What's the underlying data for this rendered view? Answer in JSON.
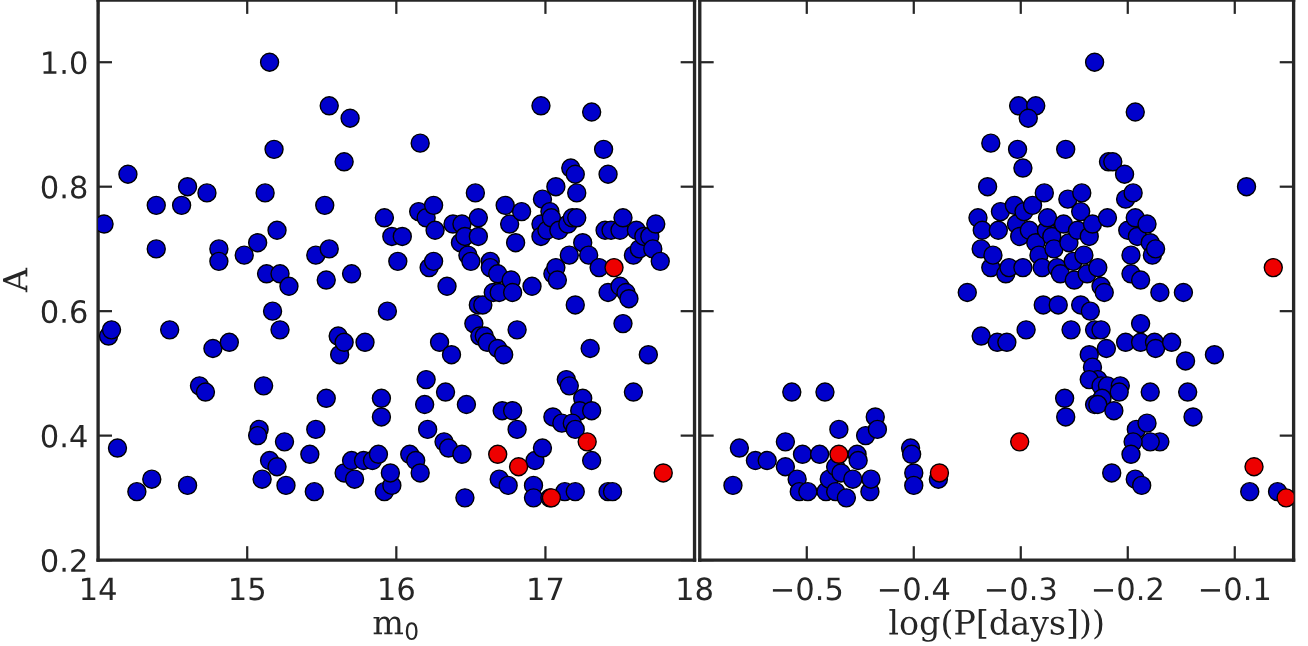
{
  "chart_data": [
    {
      "type": "scatter",
      "xlabel": "m$_{0}$",
      "ylabel": "A",
      "xlim": [
        14,
        18
      ],
      "ylim": [
        0.2,
        1.1
      ],
      "xticks": [
        14,
        15,
        16,
        17,
        18
      ],
      "yticks": [
        0.2,
        0.4,
        0.6,
        0.8,
        {
          "value": 1,
          "label": "1.0"
        }
      ],
      "marker": "circle",
      "grid": false,
      "series": [
        {
          "color": "#0000cc",
          "x": [
            14.04,
            14.2,
            14.07,
            14.09,
            14.13,
            14.26,
            14.36,
            14.39,
            14.39,
            14.48,
            14.56,
            14.6,
            14.6,
            14.68,
            14.72,
            14.73,
            14.77,
            14.81,
            14.81,
            14.88,
            14.98,
            15.07,
            15.08,
            15.07,
            15.1,
            15.11,
            15.12,
            15.13,
            15.15,
            15.15,
            15.17,
            15.18,
            15.2,
            15.2,
            15.22,
            15.22,
            15.25,
            15.26,
            15.28,
            15.42,
            15.45,
            15.46,
            15.46,
            15.52,
            15.53,
            15.55,
            15.53,
            15.55,
            15.61,
            15.62,
            15.65,
            15.65,
            15.65,
            15.69,
            15.7,
            15.7,
            15.72,
            15.79,
            15.78,
            15.84,
            15.88,
            15.9,
            15.9,
            15.94,
            15.92,
            15.97,
            15.96,
            15.92,
            15.97,
            16.01,
            16.04,
            16.09,
            16.13,
            16.16,
            16.2,
            16.19,
            16.21,
            16.16,
            16.15,
            16.2,
            16.25,
            16.26,
            16.22,
            16.25,
            16.29,
            16.34,
            16.33,
            16.37,
            16.32,
            16.35,
            16.38,
            16.44,
            16.43,
            16.46,
            16.47,
            16.44,
            16.46,
            16.48,
            16.5,
            16.53,
            16.55,
            16.55,
            16.55,
            16.58,
            16.52,
            16.56,
            16.59,
            16.61,
            16.63,
            16.63,
            16.68,
            16.65,
            16.69,
            16.68,
            16.72,
            16.71,
            16.73,
            16.76,
            16.77,
            16.78,
            16.8,
            16.84,
            16.81,
            16.78,
            16.81,
            16.69,
            16.75,
            16.91,
            16.93,
            16.92,
            16.92,
            16.97,
            16.98,
            16.97,
            16.97,
            17.03,
            17.01,
            17.04,
            17.05,
            17.07,
            17.08,
            17.05,
            16.98,
            17.03,
            17.07,
            17.11,
            17.09,
            17.15,
            17.13,
            17.16,
            17.18,
            17.17,
            17.2,
            17.21,
            17.21,
            17.25,
            17.2,
            17.14,
            17.16,
            17.25,
            17.23,
            17.31,
            17.18,
            17.2,
            17.31,
            17.2,
            17.31,
            17.39,
            17.42,
            17.29,
            17.36,
            17.3,
            17.4,
            17.44,
            17.5,
            17.52,
            17.42,
            17.5,
            17.54,
            17.56,
            17.52,
            17.42,
            17.45,
            17.59,
            17.59,
            17.61,
            17.63,
            17.66,
            17.7,
            17.69,
            17.74,
            17.72,
            17.77
          ],
          "values": [
            0.74,
            0.82,
            0.56,
            0.57,
            0.38,
            0.31,
            0.33,
            0.77,
            0.7,
            0.57,
            0.77,
            0.8,
            0.32,
            0.48,
            0.47,
            0.79,
            0.54,
            0.7,
            0.68,
            0.55,
            0.69,
            0.71,
            0.41,
            0.4,
            0.33,
            0.48,
            0.79,
            0.66,
            1.0,
            0.36,
            0.6,
            0.86,
            0.35,
            0.73,
            0.66,
            0.57,
            0.39,
            0.32,
            0.64,
            0.37,
            0.31,
            0.41,
            0.69,
            0.77,
            0.46,
            0.93,
            0.65,
            0.7,
            0.56,
            0.53,
            0.34,
            0.84,
            0.55,
            0.91,
            0.36,
            0.66,
            0.33,
            0.55,
            0.36,
            0.36,
            0.37,
            0.46,
            0.43,
            0.6,
            0.31,
            0.32,
            0.34,
            0.75,
            0.72,
            0.68,
            0.72,
            0.37,
            0.36,
            0.34,
            0.49,
            0.45,
            0.41,
            0.87,
            0.76,
            0.75,
            0.77,
            0.73,
            0.67,
            0.68,
            0.55,
            0.64,
            0.47,
            0.53,
            0.39,
            0.38,
            0.74,
            0.74,
            0.71,
            0.72,
            0.45,
            0.37,
            0.3,
            0.69,
            0.68,
            0.79,
            0.75,
            0.72,
            0.61,
            0.61,
            0.58,
            0.56,
            0.56,
            0.55,
            0.68,
            0.67,
            0.66,
            0.63,
            0.63,
            0.54,
            0.53,
            0.44,
            0.77,
            0.74,
            0.65,
            0.63,
            0.71,
            0.76,
            0.57,
            0.44,
            0.41,
            0.33,
            0.32,
            0.64,
            0.36,
            0.32,
            0.3,
            0.93,
            0.78,
            0.74,
            0.72,
            0.76,
            0.73,
            0.75,
            0.66,
            0.67,
            0.65,
            0.43,
            0.38,
            0.3,
            0.8,
            0.42,
            0.73,
            0.74,
            0.31,
            0.69,
            0.75,
            0.83,
            0.82,
            0.79,
            0.75,
            0.71,
            0.61,
            0.49,
            0.48,
            0.46,
            0.44,
            0.44,
            0.42,
            0.41,
            0.36,
            0.31,
            0.92,
            0.86,
            0.82,
            0.69,
            0.67,
            0.54,
            0.73,
            0.73,
            0.73,
            0.75,
            0.63,
            0.64,
            0.63,
            0.62,
            0.58,
            0.31,
            0.31,
            0.47,
            0.69,
            0.73,
            0.7,
            0.72,
            0.72,
            0.53,
            0.74,
            0.7,
            0.68
          ]
        },
        {
          "color": "#ee0000",
          "x": [
            16.68,
            16.82,
            17.04,
            17.28,
            17.46,
            17.79
          ],
          "values": [
            0.37,
            0.35,
            0.3,
            0.39,
            0.67,
            0.34
          ]
        }
      ]
    },
    {
      "type": "scatter",
      "xlabel": "log(P[days]))",
      "xlim": [
        -0.6,
        -0.045
      ],
      "ylim": [
        0.2,
        1.1
      ],
      "xticks": [
        -0.5,
        -0.4,
        -0.3,
        -0.2,
        -0.1
      ],
      "yticks": [
        0.2,
        0.4,
        0.6,
        0.8,
        1
      ],
      "tick_labels": "x",
      "marker": "circle",
      "grid": false,
      "series": [
        {
          "color": "#0000cc",
          "x": [
            -0.569,
            -0.563,
            -0.548,
            -0.537,
            -0.52,
            -0.52,
            -0.514,
            -0.509,
            -0.507,
            -0.499,
            -0.504,
            -0.488,
            -0.483,
            -0.482,
            -0.479,
            -0.473,
            -0.47,
            -0.473,
            -0.468,
            -0.463,
            -0.457,
            -0.453,
            -0.452,
            -0.445,
            -0.441,
            -0.44,
            -0.436,
            -0.434,
            -0.403,
            -0.402,
            -0.4,
            -0.4,
            -0.377,
            -0.35,
            -0.337,
            -0.322,
            -0.313,
            -0.295,
            -0.328,
            -0.331,
            -0.303,
            -0.298,
            -0.302,
            -0.286,
            -0.293,
            -0.34,
            -0.336,
            -0.337,
            -0.328,
            -0.326,
            -0.321,
            -0.319,
            -0.314,
            -0.311,
            -0.306,
            -0.304,
            -0.298,
            -0.301,
            -0.297,
            -0.292,
            -0.289,
            -0.286,
            -0.283,
            -0.28,
            -0.278,
            -0.276,
            -0.275,
            -0.271,
            -0.269,
            -0.266,
            -0.263,
            -0.26,
            -0.258,
            -0.256,
            -0.255,
            -0.251,
            -0.25,
            -0.247,
            -0.244,
            -0.243,
            -0.241,
            -0.238,
            -0.236,
            -0.233,
            -0.228,
            -0.225,
            -0.222,
            -0.219,
            -0.218,
            -0.214,
            -0.203,
            -0.202,
            -0.2,
            -0.197,
            -0.197,
            -0.195,
            -0.193,
            -0.191,
            -0.188,
            -0.182,
            -0.179,
            -0.177,
            -0.174,
            -0.17,
            -0.148,
            -0.231,
            -0.193,
            -0.279,
            -0.265,
            -0.253,
            -0.244,
            -0.235,
            -0.231,
            -0.225,
            -0.22,
            -0.236,
            -0.233,
            -0.228,
            -0.236,
            -0.225,
            -0.219,
            -0.207,
            -0.224,
            -0.231,
            -0.228,
            -0.213,
            -0.208,
            -0.259,
            -0.258,
            -0.202,
            -0.188,
            -0.188,
            -0.175,
            -0.174,
            -0.159,
            -0.146,
            -0.119,
            -0.179,
            -0.144,
            -0.139,
            -0.192,
            -0.182,
            -0.17,
            -0.179,
            -0.195,
            -0.197,
            -0.215,
            -0.193,
            -0.187,
            -0.089,
            -0.086,
            -0.06
          ],
          "values": [
            0.32,
            0.38,
            0.36,
            0.36,
            0.39,
            0.35,
            0.47,
            0.33,
            0.31,
            0.31,
            0.37,
            0.37,
            0.47,
            0.31,
            0.33,
            0.31,
            0.41,
            0.35,
            0.34,
            0.3,
            0.33,
            0.37,
            0.36,
            0.4,
            0.31,
            0.33,
            0.43,
            0.41,
            0.38,
            0.37,
            0.34,
            0.32,
            0.33,
            0.63,
            0.56,
            0.55,
            0.55,
            0.57,
            0.87,
            0.8,
            0.86,
            0.83,
            0.93,
            0.93,
            0.91,
            0.75,
            0.73,
            0.7,
            0.67,
            0.69,
            0.73,
            0.76,
            0.66,
            0.67,
            0.77,
            0.74,
            0.67,
            0.72,
            0.76,
            0.73,
            0.77,
            0.71,
            0.69,
            0.67,
            0.79,
            0.73,
            0.75,
            0.72,
            0.7,
            0.67,
            0.66,
            0.74,
            0.86,
            0.78,
            0.71,
            0.68,
            0.65,
            0.73,
            0.76,
            0.79,
            0.69,
            0.66,
            0.72,
            0.74,
            0.67,
            0.64,
            0.63,
            0.75,
            0.84,
            0.84,
            0.82,
            0.78,
            0.73,
            0.69,
            0.66,
            0.79,
            0.75,
            0.72,
            0.65,
            0.74,
            0.71,
            0.69,
            0.7,
            0.63,
            0.63,
            1.0,
            0.92,
            0.61,
            0.61,
            0.57,
            0.61,
            0.6,
            0.57,
            0.57,
            0.54,
            0.53,
            0.51,
            0.49,
            0.49,
            0.48,
            0.48,
            0.48,
            0.46,
            0.45,
            0.45,
            0.44,
            0.47,
            0.46,
            0.43,
            0.55,
            0.58,
            0.55,
            0.55,
            0.54,
            0.55,
            0.52,
            0.53,
            0.47,
            0.47,
            0.43,
            0.41,
            0.42,
            0.39,
            0.39,
            0.39,
            0.37,
            0.34,
            0.33,
            0.32,
            0.8,
            0.31,
            0.31
          ]
        },
        {
          "color": "#ee0000",
          "x": [
            -0.47,
            -0.376,
            -0.301,
            -0.082,
            -0.064,
            -0.052
          ],
          "values": [
            0.37,
            0.34,
            0.39,
            0.35,
            0.67,
            0.3
          ]
        }
      ]
    }
  ]
}
